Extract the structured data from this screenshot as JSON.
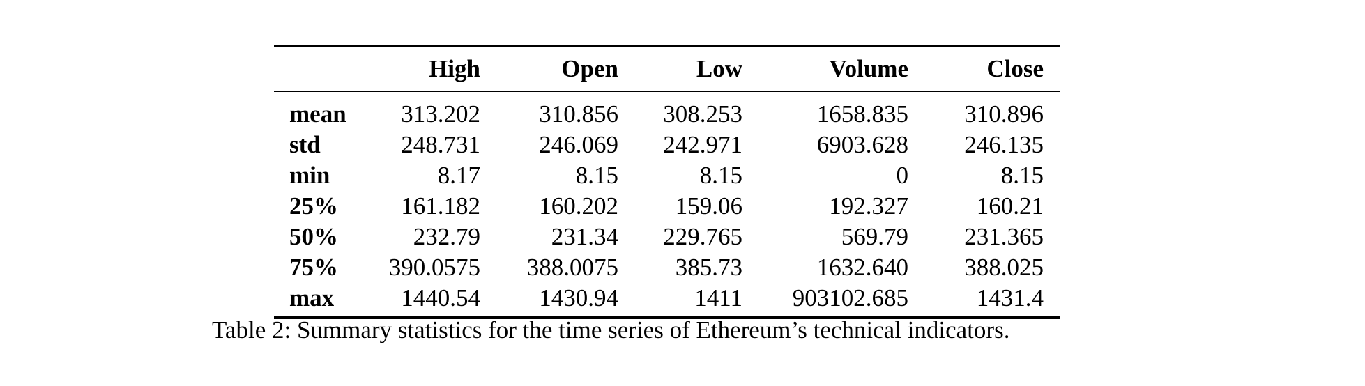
{
  "table": {
    "columns": [
      "High",
      "Open",
      "Low",
      "Volume",
      "Close"
    ],
    "rows": [
      {
        "label": "mean",
        "values": [
          "313.202",
          "310.856",
          "308.253",
          "1658.835",
          "310.896"
        ]
      },
      {
        "label": "std",
        "values": [
          "248.731",
          "246.069",
          "242.971",
          "6903.628",
          "246.135"
        ]
      },
      {
        "label": "min",
        "values": [
          "8.17",
          "8.15",
          "8.15",
          "0",
          "8.15"
        ]
      },
      {
        "label": "25%",
        "values": [
          "161.182",
          "160.202",
          "159.06",
          "192.327",
          "160.21"
        ]
      },
      {
        "label": "50%",
        "values": [
          "232.79",
          "231.34",
          "229.765",
          "569.79",
          "231.365"
        ]
      },
      {
        "label": "75%",
        "values": [
          "390.0575",
          "388.0075",
          "385.73",
          "1632.640",
          "388.025"
        ]
      },
      {
        "label": "max",
        "values": [
          "1440.54",
          "1430.94",
          "1411",
          "903102.685",
          "1431.4"
        ]
      }
    ]
  },
  "caption": "Table 2: Summary statistics for the time series of Ethereum’s technical indicators."
}
